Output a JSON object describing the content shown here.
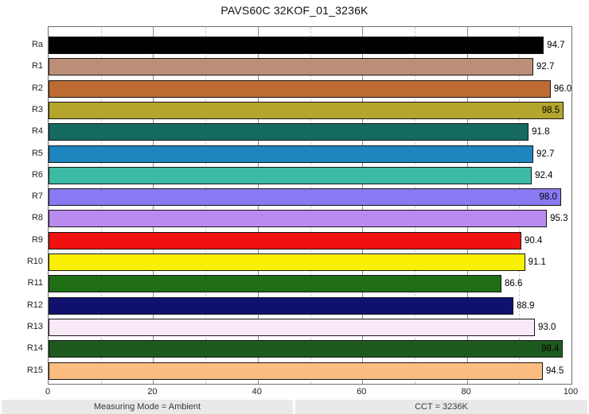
{
  "title": "PAVS60C 32KOF_01_3236K",
  "chart_data": {
    "type": "bar",
    "orientation": "horizontal",
    "title": "PAVS60C 32KOF_01_3236K",
    "categories": [
      "Ra",
      "R1",
      "R2",
      "R3",
      "R4",
      "R5",
      "R6",
      "R7",
      "R8",
      "R9",
      "R10",
      "R11",
      "R12",
      "R13",
      "R14",
      "R15"
    ],
    "values": [
      94.7,
      92.7,
      96.0,
      98.5,
      91.8,
      92.7,
      92.4,
      98.0,
      95.3,
      90.4,
      91.1,
      86.6,
      88.9,
      93.0,
      98.4,
      94.5
    ],
    "value_labels": [
      "94.7",
      "92.7",
      "96.0",
      "98.5",
      "91.8",
      "92.7",
      "92.4",
      "98.0",
      "95.3",
      "90.4",
      "91.1",
      "86.6",
      "88.9",
      "93.0",
      "98.4",
      "94.5"
    ],
    "bar_colors": [
      "#000000",
      "#bd8e77",
      "#be6b33",
      "#b4a62c",
      "#156b60",
      "#1e86be",
      "#3cbaa5",
      "#8979f2",
      "#ba8bef",
      "#f01210",
      "#f8f000",
      "#1f6e16",
      "#10116f",
      "#f9e9f7",
      "#1e5a1e",
      "#fbbd80"
    ],
    "xlabel": "",
    "ylabel": "",
    "xlim": [
      0,
      100
    ],
    "x_ticks": [
      0,
      20,
      40,
      60,
      80,
      100
    ],
    "x_minor_ticks": [
      10,
      30,
      50,
      70,
      90
    ],
    "grid": "vertical gridlines: major solid, minor dashed",
    "legend": "none",
    "value_label_inside_threshold": 97
  },
  "status_bar": {
    "left": "Measuring Mode = Ambient",
    "right": "CCT = 3236K"
  },
  "colors": {
    "background": "#ffffff",
    "plot_border": "#6e6e6e",
    "bar_outline": "#161616",
    "major_grid": "#8d8d8d",
    "minor_grid": "#c9c9c9",
    "status_bg": "#e9e9e9",
    "text": "#111111"
  }
}
